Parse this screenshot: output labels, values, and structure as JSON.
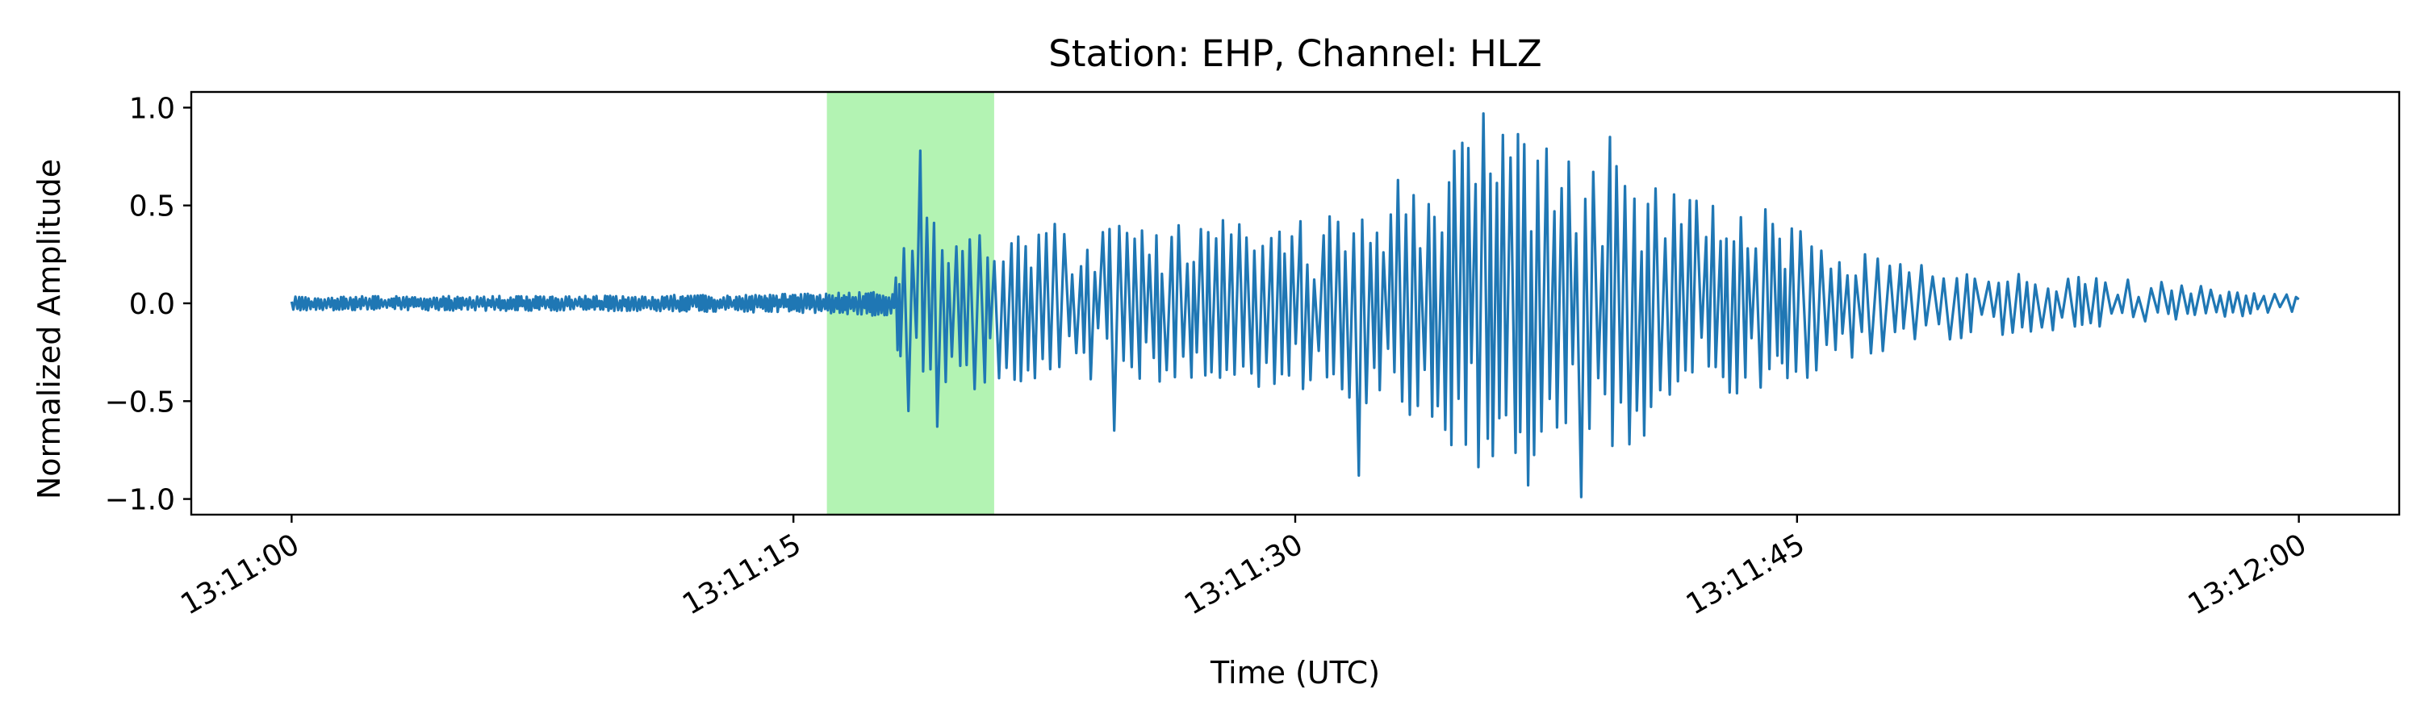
{
  "chart_data": {
    "type": "line",
    "title": "Station: EHP, Channel: HLZ",
    "xlabel": "Time (UTC)",
    "ylabel": "Normalized Amplitude",
    "x_unit": "time of day (UTC)",
    "xlim": [
      "13:10:57",
      "13:12:03"
    ],
    "ylim": [
      -1.08,
      1.08
    ],
    "x_ticks": [
      "13:11:00",
      "13:11:15",
      "13:11:30",
      "13:11:45",
      "13:12:00"
    ],
    "y_ticks": [
      1.0,
      0.5,
      0.0,
      -0.5,
      -1.0
    ],
    "y_tick_labels": [
      "1.0",
      "0.5",
      "0.0",
      "−0.5",
      "−1.0"
    ],
    "grid": false,
    "legend": "none",
    "highlight_span": {
      "start": "13:11:16.0",
      "end": "13:11:21.0",
      "color": "#b3f3b3"
    },
    "series": [
      {
        "color": "#1f77b4",
        "envelope": {
          "x": [
            "13:11:00",
            "13:11:10",
            "13:11:16",
            "13:11:18",
            "13:11:18.2",
            "13:11:19",
            "13:11:21",
            "13:11:25",
            "13:11:30",
            "13:11:33",
            "13:11:35",
            "13:11:37",
            "13:11:39",
            "13:11:42",
            "13:11:45",
            "13:11:48",
            "13:11:52",
            "13:11:56",
            "13:12:00"
          ],
          "y": [
            0.035,
            0.04,
            0.05,
            0.07,
            0.38,
            0.5,
            0.42,
            0.4,
            0.45,
            0.55,
            0.85,
            0.9,
            0.8,
            0.55,
            0.38,
            0.22,
            0.15,
            0.11,
            0.04
          ]
        },
        "peaks": [
          {
            "x": "13:11:18.8",
            "y": 0.78
          },
          {
            "x": "13:11:19.2",
            "y": -0.63
          },
          {
            "x": "13:11:18.4",
            "y": -0.55
          },
          {
            "x": "13:11:24.5",
            "y": -0.65
          },
          {
            "x": "13:11:32.0",
            "y": -0.88
          },
          {
            "x": "13:11:33.0",
            "y": 0.63
          },
          {
            "x": "13:11:35.0",
            "y": 0.82
          },
          {
            "x": "13:11:35.6",
            "y": 0.97
          },
          {
            "x": "13:11:36.2",
            "y": 0.86
          },
          {
            "x": "13:11:36.9",
            "y": -0.93
          },
          {
            "x": "13:11:38.5",
            "y": -0.99
          },
          {
            "x": "13:11:39.3",
            "y": 0.85
          },
          {
            "x": "13:11:40.0",
            "y": -0.72
          },
          {
            "x": "13:11:44.0",
            "y": 0.48
          },
          {
            "x": "13:11:45.2",
            "y": -0.38
          },
          {
            "x": "13:11:47.0",
            "y": 0.25
          }
        ]
      }
    ]
  }
}
